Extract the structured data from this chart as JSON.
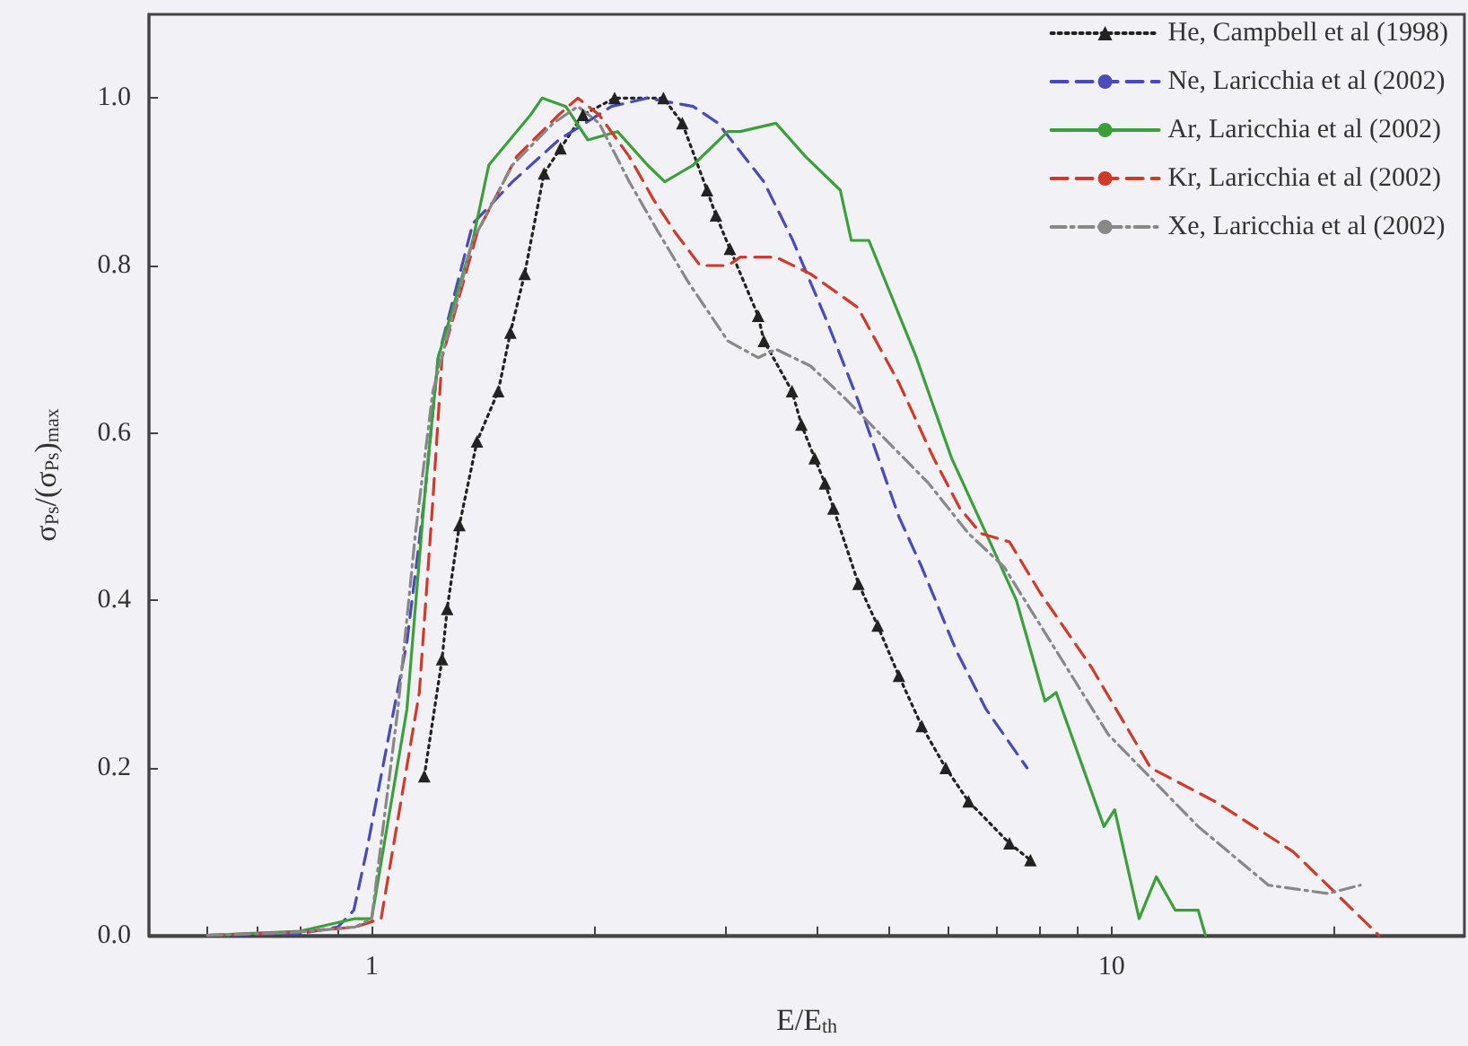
{
  "chart_data": {
    "type": "line",
    "xlabel": "E/E$_{th}$",
    "ylabel": "σ$_{Ps}$/(σ$_{Ps}$)$_{max}$",
    "log": "x",
    "grid": false,
    "legend": "top right",
    "xlim": [
      0.5,
      30
    ],
    "xticks": [
      {
        "value": 0.6,
        "label": null
      },
      {
        "value": 0.7,
        "label": null
      },
      {
        "value": 0.8,
        "label": null
      },
      {
        "value": 0.9,
        "label": null
      },
      1,
      {
        "value": 2,
        "label": null
      },
      {
        "value": 3,
        "label": null
      },
      {
        "value": 4,
        "label": null
      },
      {
        "value": 5,
        "label": null
      },
      {
        "value": 6,
        "label": null
      },
      {
        "value": 7,
        "label": null
      },
      {
        "value": 8,
        "label": null
      },
      {
        "value": 9,
        "label": null
      },
      10,
      {
        "value": 20,
        "label": null
      }
    ],
    "ylim": [
      0,
      1.1
    ],
    "yticks": [
      {
        "value": 0,
        "label": "0.0"
      },
      0.2,
      0.4,
      0.6,
      0.8,
      {
        "value": 1,
        "label": "1.0"
      }
    ],
    "series": [
      {
        "name": "He, Campbell et al (1998)",
        "color": "#222222",
        "marker": "triangle",
        "line_style": "dotted",
        "x": [
          1.178,
          1.245,
          1.265,
          1.314,
          1.388,
          1.483,
          1.54,
          1.61,
          1.71,
          1.8,
          1.93,
          2.13,
          2.48,
          2.63,
          2.84,
          2.92,
          3.05,
          3.33,
          3.39,
          3.7,
          3.81,
          3.97,
          4.1,
          4.21,
          4.55,
          4.83,
          5.16,
          5.54,
          5.97,
          6.41,
          7.28,
          7.77
        ],
        "values": [
          0.19,
          0.33,
          0.39,
          0.49,
          0.59,
          0.65,
          0.72,
          0.79,
          0.91,
          0.94,
          0.98,
          1.0,
          1.0,
          0.97,
          0.89,
          0.86,
          0.82,
          0.74,
          0.71,
          0.65,
          0.61,
          0.57,
          0.54,
          0.51,
          0.42,
          0.37,
          0.31,
          0.25,
          0.2,
          0.16,
          0.11,
          0.09
        ]
      },
      {
        "name": "Ne, Laricchia et al (2002)",
        "color": "#4a4ab8",
        "marker": "none",
        "line_style": "dashed",
        "x": [
          0.6,
          0.8,
          0.9,
          0.946,
          0.984,
          1.116,
          1.178,
          1.23,
          1.37,
          1.55,
          1.79,
          2.11,
          2.36,
          2.72,
          2.94,
          3.39,
          3.71,
          4.14,
          4.54,
          5.16,
          5.54,
          6.17,
          6.77,
          7.69
        ],
        "values": [
          0,
          0.002,
          0.01,
          0.03,
          0.1,
          0.35,
          0.52,
          0.69,
          0.85,
          0.9,
          0.95,
          0.99,
          1.0,
          0.99,
          0.97,
          0.9,
          0.83,
          0.73,
          0.64,
          0.5,
          0.44,
          0.34,
          0.27,
          0.2
        ]
      },
      {
        "name": "Ar, Laricchia et al (2002)",
        "color": "#3aa03a",
        "marker": "none",
        "line_style": "solid",
        "x": [
          0.6,
          0.8,
          0.95,
          1.0,
          1.116,
          1.178,
          1.23,
          1.37,
          1.44,
          1.64,
          1.7,
          1.83,
          1.96,
          2.15,
          2.36,
          2.49,
          2.72,
          3.03,
          3.15,
          3.52,
          3.86,
          4.3,
          4.45,
          4.7,
          5.45,
          6.08,
          6.77,
          7.44,
          8.13,
          8.42,
          9.77,
          10.1,
          10.9,
          11.5,
          12.2,
          13.1,
          13.4
        ],
        "values": [
          0,
          0.005,
          0.02,
          0.02,
          0.27,
          0.52,
          0.69,
          0.83,
          0.92,
          0.98,
          1.0,
          0.99,
          0.95,
          0.96,
          0.92,
          0.9,
          0.92,
          0.96,
          0.96,
          0.97,
          0.93,
          0.89,
          0.83,
          0.83,
          0.69,
          0.57,
          0.48,
          0.4,
          0.28,
          0.29,
          0.13,
          0.15,
          0.02,
          0.07,
          0.03,
          0.03,
          0
        ]
      },
      {
        "name": "Kr, Laricchia et al (2002)",
        "color": "#d03a2a",
        "marker": "none",
        "line_style": "dashed",
        "x": [
          0.6,
          0.8,
          0.95,
          1.03,
          1.16,
          1.21,
          1.245,
          1.39,
          1.57,
          1.79,
          1.9,
          2.03,
          2.23,
          2.4,
          2.57,
          2.78,
          3.03,
          3.15,
          3.52,
          3.92,
          4.54,
          5.16,
          5.75,
          6.24,
          6.66,
          7.28,
          8.0,
          9.4,
          11.3,
          13.8,
          17.6,
          23.0
        ],
        "values": [
          0,
          0.004,
          0.01,
          0.02,
          0.29,
          0.52,
          0.69,
          0.84,
          0.93,
          0.98,
          1.0,
          0.98,
          0.93,
          0.88,
          0.84,
          0.8,
          0.8,
          0.81,
          0.81,
          0.79,
          0.75,
          0.66,
          0.57,
          0.51,
          0.48,
          0.47,
          0.41,
          0.32,
          0.2,
          0.16,
          0.1,
          0
        ]
      },
      {
        "name": "Xe, Laricchia et al (2002)",
        "color": "#888888",
        "marker": "none",
        "line_style": "dashdot",
        "x": [
          0.6,
          0.8,
          0.95,
          1.0,
          1.085,
          1.146,
          1.21,
          1.37,
          1.55,
          1.76,
          1.9,
          2.03,
          2.23,
          2.44,
          2.68,
          3.03,
          3.33,
          3.52,
          3.92,
          4.38,
          5.66,
          6.41,
          7.16,
          8.42,
          9.9,
          13.1,
          16.3,
          19.6,
          21.7
        ],
        "values": [
          0,
          0.004,
          0.01,
          0.02,
          0.27,
          0.48,
          0.65,
          0.83,
          0.92,
          0.97,
          0.99,
          0.97,
          0.9,
          0.84,
          0.78,
          0.71,
          0.69,
          0.7,
          0.68,
          0.64,
          0.54,
          0.48,
          0.44,
          0.34,
          0.24,
          0.13,
          0.06,
          0.05,
          0.06
        ]
      }
    ]
  }
}
